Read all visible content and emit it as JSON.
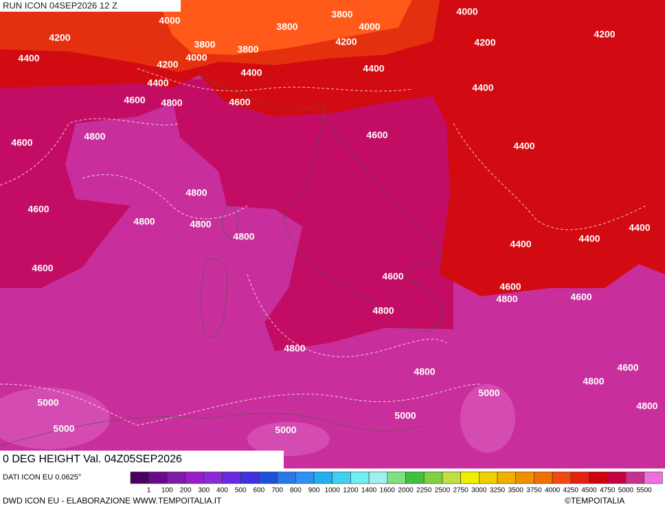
{
  "header": {
    "run": "RUN ICON 04SEP2026 12 Z"
  },
  "map": {
    "contour_labels": [
      "4000",
      "3800",
      "4000",
      "4200",
      "3800",
      "4000",
      "4200",
      "4400",
      "3800",
      "3800",
      "4200",
      "4200",
      "4200",
      "4000",
      "4400",
      "4400",
      "4400",
      "4400",
      "4600",
      "4800",
      "4600",
      "4800",
      "4600",
      "4600",
      "4400",
      "4800",
      "4600",
      "4800",
      "4800",
      "4800",
      "4400",
      "4400",
      "4400",
      "4600",
      "4600",
      "4600",
      "4800",
      "4600",
      "4800",
      "4800",
      "4600",
      "4800",
      "4800",
      "5000",
      "5000",
      "5000",
      "4800",
      "5000",
      "5000"
    ]
  },
  "footer": {
    "title": "0 DEG HEIGHT Val. 04Z05SEP2026",
    "source": "DATI ICON EU 0.0625°",
    "credit": "DWD ICON EU - ELABORAZIONE WWW.TEMPOITALIA.IT",
    "copyright": "©TEMPOITALIA"
  },
  "legend": {
    "colors": [
      "#4b0060",
      "#6a0a8a",
      "#7d1aa8",
      "#9a1ec8",
      "#8a2ad8",
      "#6a2ae0",
      "#4030e0",
      "#2050e0",
      "#2a78e8",
      "#3090f0",
      "#20b0f0",
      "#40d0f0",
      "#70f0f0",
      "#a0f0f0",
      "#80e080",
      "#40c040",
      "#80d040",
      "#c0e040",
      "#f0f000",
      "#f0d000",
      "#f0b000",
      "#f09000",
      "#f07000",
      "#f04a10",
      "#e82010",
      "#d00010",
      "#c80040",
      "#c83090",
      "#f070e0"
    ],
    "labels": [
      "1",
      "100",
      "200",
      "300",
      "400",
      "500",
      "600",
      "700",
      "800",
      "900",
      "1000",
      "1200",
      "1400",
      "1600",
      "2000",
      "2250",
      "2500",
      "2750",
      "3000",
      "3250",
      "3500",
      "3750",
      "4000",
      "4250",
      "4500",
      "4750",
      "5000",
      "5500"
    ]
  }
}
